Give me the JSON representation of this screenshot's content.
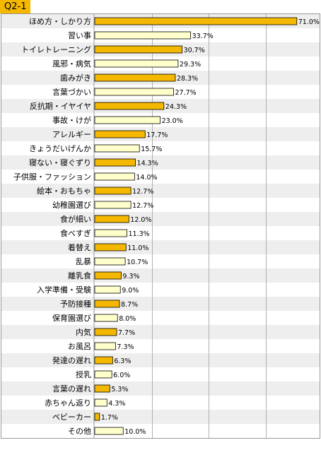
{
  "header": {
    "question_label": "Q2-1"
  },
  "chart_data": {
    "type": "bar",
    "orientation": "horizontal",
    "categories": [
      "ほめ方・しかり方",
      "習い事",
      "トイレトレーニング",
      "風邪・病気",
      "歯みがき",
      "言葉づかい",
      "反抗期・イヤイヤ",
      "事故・けが",
      "アレルギー",
      "きょうだいげんか",
      "寝ない・寝ぐずり",
      "子供服・ファッション",
      "絵本・おもちゃ",
      "幼稚園選び",
      "食が細い",
      "食べすぎ",
      "着替え",
      "乱暴",
      "離乳食",
      "入学準備・受験",
      "予防接種",
      "保育園選び",
      "内気",
      "お風呂",
      "発達の遅れ",
      "授乳",
      "言葉の遅れ",
      "赤ちゃん返り",
      "ベビーカー",
      "その他"
    ],
    "values": [
      71.0,
      33.7,
      30.7,
      29.3,
      28.3,
      27.7,
      24.3,
      23.0,
      17.7,
      15.7,
      14.3,
      14.0,
      12.7,
      12.7,
      12.0,
      11.3,
      11.0,
      10.7,
      9.3,
      9.0,
      8.7,
      8.0,
      7.7,
      7.3,
      6.3,
      6.0,
      5.3,
      4.3,
      1.7,
      10.0
    ],
    "value_labels": [
      "71.0%",
      "33.7%",
      "30.7%",
      "29.3%",
      "28.3%",
      "27.7%",
      "24.3%",
      "23.0%",
      "17.7%",
      "15.7%",
      "14.3%",
      "14.0%",
      "12.7%",
      "12.7%",
      "12.0%",
      "11.3%",
      "11.0%",
      "10.7%",
      "9.3%",
      "9.0%",
      "8.7%",
      "8.0%",
      "7.7%",
      "7.3%",
      "6.3%",
      "6.0%",
      "5.3%",
      "4.3%",
      "1.7%",
      "10.0%"
    ],
    "xlim": [
      0,
      80
    ],
    "x_ticks": [
      20,
      40,
      60
    ],
    "x_tick_labels": [
      "20%",
      "40%",
      "60%"
    ],
    "grid": true,
    "colors": {
      "bar_odd": "#f5b800",
      "bar_even": "#ffffcc",
      "bar_edge": "#000000",
      "row_alt": "#eeeeee",
      "grid": "#b0b0b0",
      "border": "#9a9a9a"
    }
  }
}
